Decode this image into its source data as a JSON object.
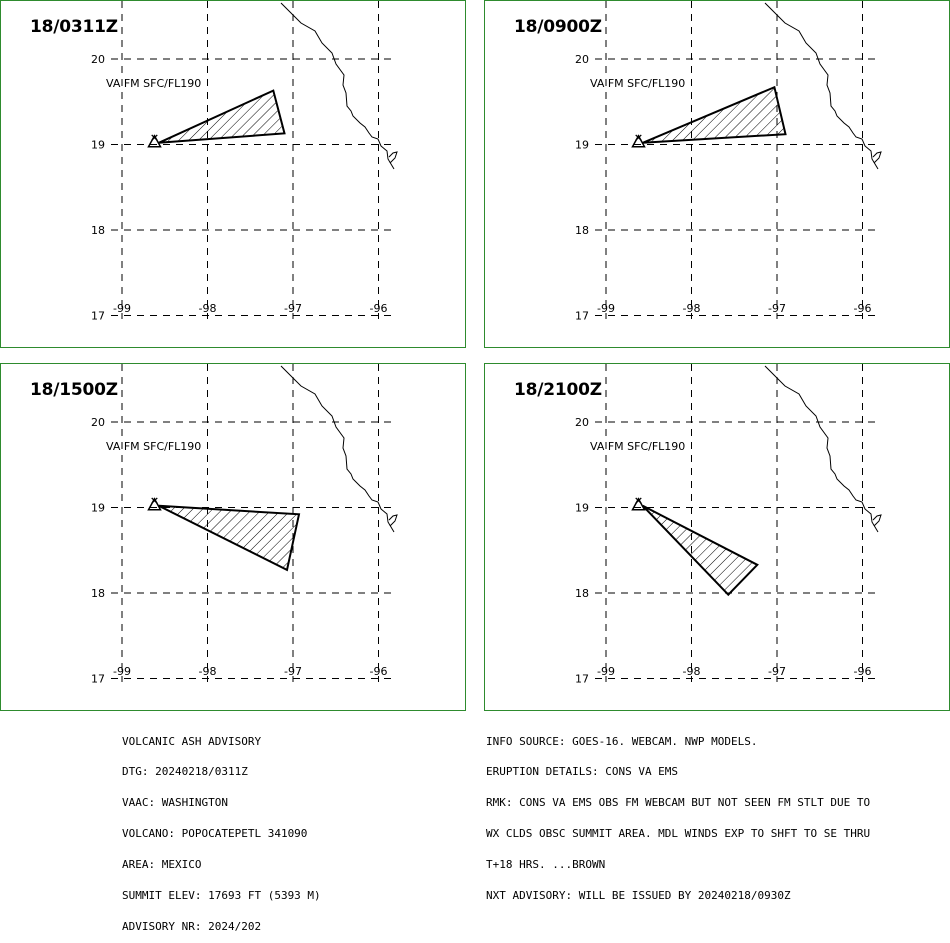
{
  "panels": [
    {
      "title": "18/0311Z",
      "label": "VA FM SFC/FL190",
      "polygon": [
        [
          -98.57,
          19.02
        ],
        [
          -97.23,
          19.63
        ],
        [
          -97.1,
          19.13
        ]
      ]
    },
    {
      "title": "18/0900Z",
      "label": "VA FM SFC/FL190",
      "polygon": [
        [
          -98.57,
          19.02
        ],
        [
          -97.03,
          19.67
        ],
        [
          -96.9,
          19.12
        ]
      ]
    },
    {
      "title": "18/1500Z",
      "label": "VA FM SFC/FL190",
      "polygon": [
        [
          -98.57,
          19.02
        ],
        [
          -96.93,
          18.92
        ],
        [
          -97.07,
          18.27
        ]
      ]
    },
    {
      "title": "18/2100Z",
      "label": "VA FM SFC/FL190",
      "polygon": [
        [
          -98.57,
          19.02
        ],
        [
          -97.23,
          18.33
        ],
        [
          -97.57,
          17.98
        ]
      ]
    }
  ],
  "axes": {
    "lat_labels": [
      "20",
      "19",
      "18",
      "17"
    ],
    "lon_labels": [
      "-99",
      "-98",
      "-97",
      "-96"
    ]
  },
  "volcano_marker": {
    "lon": -98.62,
    "lat": 19.02
  },
  "colors": {
    "frame": "#2e8b2e",
    "polygon_fill_hatch": "#000000"
  },
  "advisory_left": {
    "line1": "VOLCANIC ASH ADVISORY",
    "line2": "DTG: 20240218/0311Z",
    "line3": "VAAC: WASHINGTON",
    "line4": "VOLCANO: POPOCATEPETL 341090",
    "line5": "AREA: MEXICO",
    "line6": "SUMMIT ELEV: 17693 FT (5393 M)",
    "line7": "ADVISORY NR: 2024/202"
  },
  "advisory_right": {
    "line1": "INFO SOURCE: GOES-16. WEBCAM. NWP MODELS.",
    "line2": "ERUPTION DETAILS: CONS VA EMS",
    "line3": "RMK: CONS VA EMS OBS FM WEBCAM BUT NOT SEEN FM STLT DUE TO",
    "line4": "WX CLDS OBSC SUMMIT AREA. MDL WINDS EXP TO SHFT TO SE THRU",
    "line5": "T+18 HRS. ...BROWN",
    "line6": "NXT ADVISORY: WILL BE ISSUED BY 20240218/0930Z"
  }
}
